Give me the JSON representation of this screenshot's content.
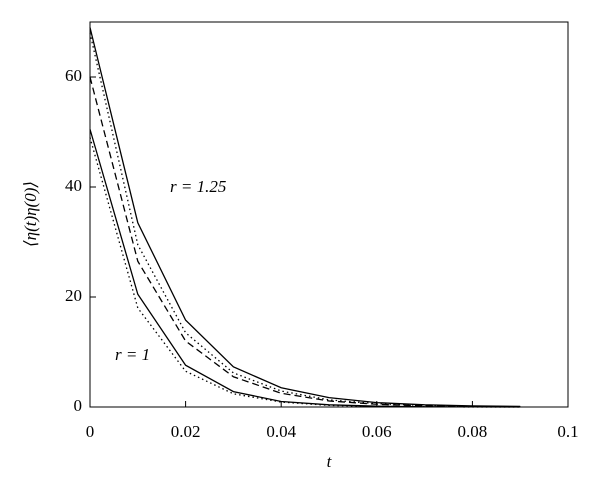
{
  "chart_data": {
    "type": "line",
    "x_label": "t",
    "y_label": "⟨η(t)η(0)⟩",
    "annotations": [
      "r = 1.25",
      "r = 1"
    ],
    "x": [
      0,
      0.01,
      0.02,
      0.03,
      0.04,
      0.05,
      0.06,
      0.07,
      0.08,
      0.09
    ],
    "series": [
      {
        "color": "#000000",
        "dash": "solid",
        "values": [
          69,
          33.5,
          15.8,
          7.3,
          3.5,
          1.7,
          0.8,
          0.4,
          0.2,
          0.1
        ]
      },
      {
        "color": "#000000",
        "dash": "dotted",
        "values": [
          68,
          29.5,
          13.5,
          6.2,
          2.9,
          1.3,
          0.6,
          0.3,
          0.1,
          0.05
        ]
      },
      {
        "color": "#000000",
        "dash": "dashed",
        "values": [
          60,
          26.5,
          12,
          5.5,
          2.5,
          1.1,
          0.5,
          0.2,
          0.1,
          0.05
        ]
      },
      {
        "color": "#000000",
        "dash": "solid",
        "values": [
          50.5,
          20.5,
          7.6,
          2.8,
          1.0,
          0.4,
          0.15,
          0.05,
          0.02,
          0
        ]
      },
      {
        "color": "#000000",
        "dash": "dotted",
        "values": [
          49,
          18,
          6.5,
          2.4,
          0.9,
          0.3,
          0.1,
          0.04,
          0.01,
          0
        ]
      }
    ],
    "xlim": [
      0,
      0.1
    ],
    "xticks": [
      0,
      0.02,
      0.04,
      0.06,
      0.08,
      0.1
    ],
    "ylim": [
      0,
      70
    ],
    "yticks": [
      0,
      20,
      40,
      60
    ]
  }
}
